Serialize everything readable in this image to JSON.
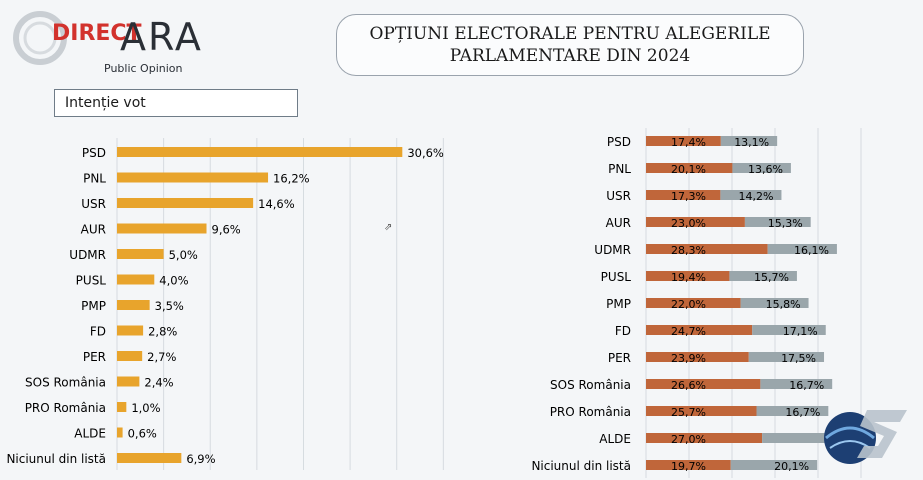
{
  "brand": {
    "primary": "DIRECT",
    "secondary": "ARA",
    "tagline": "Public Opinion"
  },
  "header": {
    "title_line1": "OPȚIUNI ELECTORALE PENTRU ALEGERILE",
    "title_line2": "PARLAMENTARE DIN 2024"
  },
  "intent_label": "Intenție vot",
  "colors": {
    "orange": "#e8a42c",
    "rust": "#c0663a",
    "grey": "#9aa6ab",
    "grid": "#d6dbe0"
  },
  "chart_data": [
    {
      "type": "bar",
      "orientation": "horizontal",
      "title": "Intenție vot",
      "categories": [
        "PSD",
        "PNL",
        "USR",
        "AUR",
        "UDMR",
        "PUSL",
        "PMP",
        "FD",
        "PER",
        "SOS România",
        "PRO România",
        "ALDE",
        "Niciunul din listă"
      ],
      "values": [
        30.6,
        16.2,
        14.6,
        9.6,
        5.0,
        4.0,
        3.5,
        2.8,
        2.7,
        2.4,
        1.0,
        0.6,
        6.9
      ],
      "labels": [
        "30,6%",
        "16,2%",
        "14,6%",
        "9,6%",
        "5,0%",
        "4,0%",
        "3,5%",
        "2,8%",
        "2,7%",
        "2,4%",
        "1,0%",
        "0,6%",
        "6,9%"
      ],
      "xlim": [
        0,
        35
      ],
      "grid": true
    },
    {
      "type": "bar",
      "orientation": "horizontal",
      "stacked": true,
      "categories": [
        "PSD",
        "PNL",
        "USR",
        "AUR",
        "UDMR",
        "PUSL",
        "PMP",
        "FD",
        "PER",
        "SOS România",
        "PRO România",
        "ALDE",
        "Niciunul din listă"
      ],
      "series": [
        {
          "name": "series_1",
          "values": [
            17.4,
            20.1,
            17.3,
            23.0,
            28.3,
            19.4,
            22.0,
            24.7,
            23.9,
            26.6,
            25.7,
            27.0,
            19.7
          ],
          "labels": [
            "17,4%",
            "20,1%",
            "17,3%",
            "23,0%",
            "28,3%",
            "19,4%",
            "22,0%",
            "24,7%",
            "23,9%",
            "26,6%",
            "25,7%",
            "27,0%",
            "19,7%"
          ]
        },
        {
          "name": "series_2",
          "values": [
            13.1,
            13.6,
            14.2,
            15.3,
            16.1,
            15.7,
            15.8,
            17.1,
            17.5,
            16.7,
            16.7,
            16.5,
            20.1
          ],
          "labels": [
            "13,1%",
            "13,6%",
            "14,2%",
            "15,3%",
            "16,1%",
            "15,7%",
            "15,8%",
            "17,1%",
            "17,5%",
            "16,7%",
            "16,7%",
            "",
            "20,1%"
          ]
        }
      ],
      "grid": true
    }
  ]
}
